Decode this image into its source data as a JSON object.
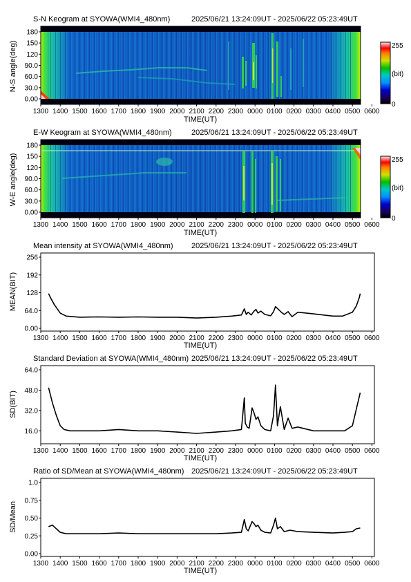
{
  "time_ticks": [
    "1300",
    "1400",
    "1500",
    "1600",
    "1700",
    "1800",
    "1900",
    "2000",
    "2100",
    "2200",
    "2300",
    "0000",
    "0100",
    "0200",
    "0300",
    "0400",
    "0500",
    "0600"
  ],
  "xlabel": "TIME(UT)",
  "time_range": "2025/06/21 13:24:09UT - 2025/06/22 05:23:49UT",
  "keograms": [
    {
      "title": "S-N Keogram at SYOWA(WMI4_480nm)",
      "ylabel": "N-S angle(deg)",
      "yticks": [
        "0.00",
        "30.0",
        "60.0",
        "90.0",
        "120",
        "150",
        "180"
      ],
      "ylim": [
        0,
        180
      ],
      "colorbar": {
        "max": "255",
        "unit": "(bit)",
        "min": "0"
      }
    },
    {
      "title": "E-W Keogram at SYOWA(WMI4_480nm)",
      "ylabel": "W-E angle(deg)",
      "yticks": [
        "0.00",
        "30.0",
        "60.0",
        "90.0",
        "120",
        "150",
        "180"
      ],
      "ylim": [
        0,
        180
      ],
      "colorbar": {
        "max": "255",
        "unit": "(bit)",
        "min": "0"
      }
    }
  ],
  "colors": {
    "line": "#000000",
    "keogram_low": "#0028b4",
    "keogram_mid": "#18a8c8",
    "keogram_high": "#28dc28"
  },
  "chart_data": [
    {
      "type": "line",
      "title": "Mean intensity at SYOWA(WMI4_480nm)",
      "ylabel": "MEAN(BIT)",
      "xlabel": "TIME(UT)",
      "yticks": [
        "0.00",
        "64.0",
        "128",
        "192",
        "256"
      ],
      "ylim": [
        0,
        256
      ],
      "xlim": [
        13,
        30
      ],
      "x": [
        13.4,
        13.5,
        13.7,
        14.0,
        14.3,
        15.0,
        16.0,
        17.0,
        18.0,
        19.0,
        20.0,
        21.0,
        22.0,
        22.8,
        23.3,
        23.45,
        23.55,
        23.65,
        23.8,
        23.95,
        24.05,
        24.15,
        24.3,
        24.5,
        24.8,
        24.95,
        25.05,
        25.2,
        25.35,
        25.5,
        25.7,
        25.9,
        26.2,
        27.0,
        28.0,
        28.5,
        29.0,
        29.2,
        29.35,
        29.4
      ],
      "values": [
        125,
        110,
        85,
        55,
        44,
        40,
        41,
        40,
        41,
        40,
        40,
        37,
        40,
        44,
        48,
        70,
        50,
        58,
        48,
        62,
        68,
        55,
        62,
        50,
        45,
        60,
        78,
        68,
        58,
        50,
        60,
        42,
        58,
        52,
        44,
        44,
        58,
        80,
        110,
        125
      ]
    },
    {
      "type": "line",
      "title": "Standard Deviation at SYOWA(WMI4_480nm)",
      "ylabel": "SD(BIT)",
      "xlabel": "TIME(UT)",
      "yticks": [
        "16.0",
        "32.0",
        "48.0",
        "64.0"
      ],
      "ylim": [
        8,
        64
      ],
      "xlim": [
        13,
        30
      ],
      "x": [
        13.4,
        13.6,
        13.8,
        14.0,
        14.2,
        14.5,
        15.0,
        16.0,
        17.0,
        18.0,
        19.0,
        20.0,
        21.0,
        22.0,
        22.8,
        23.3,
        23.45,
        23.5,
        23.6,
        23.7,
        23.85,
        23.95,
        24.05,
        24.15,
        24.3,
        24.5,
        24.8,
        24.95,
        25.05,
        25.15,
        25.3,
        25.5,
        25.7,
        25.9,
        26.2,
        27.0,
        28.0,
        28.6,
        29.0,
        29.2,
        29.4
      ],
      "values": [
        50,
        38,
        28,
        20,
        17,
        16,
        16,
        16,
        17,
        16,
        16,
        15,
        14,
        15,
        16,
        17,
        42,
        22,
        19,
        18,
        34,
        30,
        25,
        27,
        20,
        17,
        16,
        28,
        52,
        20,
        35,
        17,
        26,
        18,
        19,
        16,
        16,
        16,
        20,
        33,
        46
      ]
    },
    {
      "type": "line",
      "title": "Ratio of SD/Mean at SYOWA(WMI4_480nm)",
      "ylabel": "SD/Mean",
      "xlabel": "TIME(UT)",
      "yticks": [
        "0.00",
        "0.25",
        "0.50",
        "0.75",
        "1.0"
      ],
      "ylim": [
        0,
        1
      ],
      "xlim": [
        13,
        30
      ],
      "x": [
        13.4,
        13.6,
        13.8,
        14.0,
        14.3,
        15.0,
        16.0,
        17.0,
        18.0,
        19.0,
        20.0,
        21.0,
        22.0,
        22.8,
        23.3,
        23.45,
        23.55,
        23.65,
        23.85,
        23.95,
        24.05,
        24.15,
        24.3,
        24.5,
        24.8,
        24.95,
        25.05,
        25.15,
        25.3,
        25.5,
        25.8,
        26.2,
        27.0,
        28.0,
        28.6,
        29.0,
        29.2,
        29.4
      ],
      "values": [
        0.38,
        0.4,
        0.35,
        0.3,
        0.28,
        0.28,
        0.28,
        0.29,
        0.28,
        0.28,
        0.28,
        0.28,
        0.28,
        0.29,
        0.3,
        0.48,
        0.35,
        0.32,
        0.45,
        0.42,
        0.38,
        0.4,
        0.33,
        0.3,
        0.29,
        0.4,
        0.5,
        0.35,
        0.38,
        0.31,
        0.33,
        0.31,
        0.3,
        0.29,
        0.3,
        0.31,
        0.35,
        0.36
      ]
    }
  ]
}
